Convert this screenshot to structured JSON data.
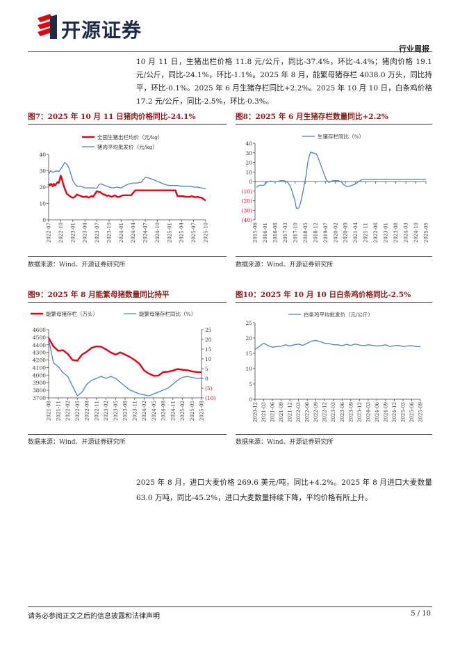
{
  "header": {
    "logo_text": "开源证券",
    "report_type": "行业周报"
  },
  "intro_text": "10 月 11 日，生猪出栏价格 11.8 元/公斤，同比-37.4%，环比-4.4%；猪肉价格 19.1 元/公斤，同比-24.1%，环比-1.1%。2025 年 8 月，能繁母猪存栏 4038.0 万头，同比持平，环比-0.1%。2025 年 6 月生猪存栏同比+2.2%。2025 年 10 月 10 日，白条鸡价格 17.2 元/公斤，同比-2.5%，环比-0.3%。",
  "figures": [
    {
      "title": "图7：2025 年 10 月 11 日猪肉价格同比-24.1%",
      "source": "数据来源：Wind、开源证券研究所"
    },
    {
      "title": "图8：2025 年 6 月生猪存栏数量同比+2.2%",
      "source": "数据来源：Wind、开源证券研究所"
    },
    {
      "title": "图9：2025 年 8 月能繁母猪数量同比持平",
      "source": "数据来源：Wind、开源证券研究所"
    },
    {
      "title": "图10：2025 年 10 月 10 日白条鸡价格同比-2.5%",
      "source": "数据来源：Wind、开源证券研究所"
    }
  ],
  "para2_text": "2025 年 8 月，进口大麦价格 269.6 美元/吨，同比+4.2%。2025 年 8 月进口大麦数量 63.0 万吨，同比-45.2%，进口大麦数量持续下降，平均价格有所上升。",
  "footer": {
    "disclaimer": "请务必参阅正文之后的信息披露和法律声明",
    "page": "5 / 10"
  },
  "colors": {
    "red": "#e60012",
    "blue": "#4f81bd",
    "title": "#8b1b1b"
  },
  "chart_data": [
    {
      "type": "line",
      "ylim": [
        0,
        40
      ],
      "yticks": [
        "0",
        "10",
        "20",
        "30",
        "40"
      ],
      "xticks": [
        "2022-07",
        "2022-10",
        "2023-01",
        "2023-04",
        "2023-07",
        "2023-10",
        "2024-01",
        "2024-04",
        "2024-07",
        "2024-10",
        "2025-01",
        "2025-04",
        "2025-07",
        "2025-10"
      ],
      "legend_position": "top-left",
      "series": [
        {
          "name": "全国生猪出栏均价（元/kg）",
          "color": "#e60012",
          "x": [
            0,
            0.3,
            0.6,
            1,
            1.3,
            1.6,
            1.9,
            2.2,
            2.5,
            2.8,
            3,
            3.3,
            3.6,
            4,
            4.5,
            5,
            5.5,
            6,
            6.5,
            7,
            7.5,
            8,
            8.5,
            9,
            9.3,
            9.6,
            9.9,
            10.3,
            10.7,
            11,
            11.3,
            11.7,
            12,
            12.5,
            12.8,
            13,
            13.3,
            13.6,
            13.9,
            14.2,
            14.5,
            14.8,
            15.2,
            15.6,
            16,
            16.5,
            17,
            17.5,
            18,
            18.5,
            19,
            19.5,
            20,
            20.5,
            21,
            21.5,
            22,
            22.5,
            23,
            23.5,
            24,
            24.5,
            25,
            25.5,
            26,
            26.5,
            27,
            27.5,
            28,
            28.5,
            29,
            29.5,
            30,
            30.5,
            31,
            31.5,
            32,
            32.5,
            33,
            33.5,
            34,
            34.5,
            35,
            35.5,
            36,
            36.5,
            37,
            37.5,
            38,
            38.5,
            39
          ],
          "values": [
            22,
            21,
            22,
            20.5,
            22,
            21,
            22,
            23,
            22.5,
            25,
            27,
            25,
            22,
            19,
            16,
            15,
            14,
            13.5,
            14,
            15.5,
            15,
            14.5,
            14,
            14,
            14.3,
            14,
            13.5,
            14,
            14.5,
            14,
            15,
            16.5,
            17.5,
            17,
            17,
            16.5,
            16,
            15.5,
            15.5,
            15,
            14.5,
            15,
            14.5,
            14,
            14.5,
            15,
            14,
            14,
            14.5,
            15,
            15,
            15,
            15,
            15,
            16.5,
            18,
            18,
            18,
            18,
            18,
            18,
            18,
            18,
            18,
            18,
            18,
            18,
            18,
            18,
            18,
            18,
            18,
            18,
            18,
            18,
            18,
            14.5,
            14.5,
            14.5,
            14.5,
            14,
            14,
            14,
            14.5,
            14,
            13.8,
            14,
            13.7,
            13.5,
            12.5,
            11.8
          ]
        },
        {
          "name": "猪肉平均批发价（元/kg）",
          "color": "#4f81bd",
          "x": [
            0,
            0.5,
            1,
            1.5,
            2,
            2.5,
            3,
            3.5,
            4,
            4.5,
            5,
            5.5,
            6,
            6.5,
            7,
            8,
            9,
            10,
            11,
            12,
            12.5,
            13,
            13.5,
            14,
            15,
            16,
            17,
            18,
            19,
            20,
            21,
            22,
            23,
            24,
            25,
            26,
            27,
            28,
            29,
            30,
            31,
            32,
            33,
            34,
            35,
            36,
            37,
            38,
            39
          ],
          "values": [
            28,
            30,
            29,
            29.5,
            30,
            29.5,
            31,
            33,
            35,
            34,
            32,
            28,
            24,
            22,
            20.5,
            20.5,
            19.5,
            19.5,
            19.5,
            19.3,
            21.5,
            22,
            21.5,
            21,
            20,
            19.5,
            20,
            19.5,
            21,
            22,
            22.5,
            22.5,
            23,
            26,
            25.5,
            24.5,
            23.5,
            22.5,
            21.5,
            21,
            21,
            21,
            20.5,
            20.5,
            20.5,
            20,
            20,
            19.5,
            19
          ]
        }
      ]
    },
    {
      "type": "line",
      "ylim": [
        -40,
        40
      ],
      "yticks": [
        "40",
        "30",
        "20",
        "10",
        "0",
        "(10)",
        "(20)",
        "(30)",
        "(40)"
      ],
      "xticks": [
        "2015-06",
        "2016-01",
        "2016-08",
        "2017-03",
        "2017-10",
        "2018-05",
        "2018-12",
        "2019-07",
        "2020-02",
        "2020-09",
        "2021-04",
        "2021-11",
        "2022-06",
        "2023-01",
        "2023-08",
        "2024-03",
        "2024-10",
        "2025-05"
      ],
      "legend_position": "top-center",
      "series": [
        {
          "name": "生猪存栏同比（%）",
          "color": "#4f81bd",
          "x": [
            1,
            2,
            3,
            4,
            5,
            6,
            7,
            8,
            9,
            10,
            11,
            12,
            13,
            14,
            15,
            16,
            17,
            18,
            19,
            20,
            21,
            22,
            23,
            24,
            25,
            26,
            27,
            28,
            29,
            30,
            31,
            32,
            33,
            34,
            35,
            36,
            37,
            38,
            39,
            40,
            41,
            42,
            43,
            44,
            45,
            46,
            47,
            48,
            49,
            50,
            51,
            52,
            53,
            54,
            55,
            56,
            57,
            58,
            59,
            60,
            61,
            62,
            63,
            64,
            65,
            66,
            67,
            68,
            69,
            70,
            71,
            72,
            73,
            74,
            75,
            76,
            77,
            78,
            79,
            80,
            81,
            82,
            83,
            84,
            85,
            86,
            87,
            88,
            89,
            90,
            91,
            92,
            93,
            94,
            95,
            96,
            97,
            98,
            99,
            100,
            101,
            102,
            103,
            104,
            105,
            106,
            107,
            108,
            109,
            110,
            111,
            112,
            113,
            114,
            115,
            116,
            117,
            118,
            119,
            120
          ],
          "values": [
            -6,
            -5,
            -4,
            -4,
            -4,
            -4,
            -3,
            -1,
            0,
            0,
            0.5,
            0,
            0,
            -0.5,
            0,
            0,
            0.5,
            1,
            1,
            1,
            0.5,
            0,
            -1,
            -3,
            -6,
            -10,
            -15,
            -20,
            -28,
            -28,
            -27,
            -22,
            -15,
            -8,
            0,
            8,
            20,
            26,
            31,
            30,
            30,
            29,
            29,
            26,
            22,
            18,
            14,
            10,
            6,
            2,
            0,
            -1,
            0,
            0.5,
            1,
            1,
            1,
            1,
            0.5,
            0,
            -1,
            -3,
            -4,
            -5,
            -5,
            -5,
            -4.5,
            -4,
            -3.5,
            -3,
            -2,
            -1,
            0,
            1,
            2,
            2.2,
            2.2,
            2.2,
            2.2,
            2.2,
            2.2,
            2.2,
            2.2,
            2.2,
            2.2,
            2.2,
            2.2,
            2.2,
            2.2,
            2.2,
            2.2,
            2.2,
            2.2,
            2.2,
            2.2,
            2.2,
            2.2,
            2.2,
            2.2,
            2.2,
            2.2,
            2.2,
            2.2,
            2.2,
            2.2,
            2.2,
            2.2,
            2.2,
            2.2,
            2.2,
            2.2,
            2.2,
            2.2,
            2.2,
            2.2,
            2.2,
            2.2,
            2.2,
            2.2,
            2.2
          ]
        }
      ]
    },
    {
      "type": "line",
      "ylim_left": [
        3700,
        4600
      ],
      "ylim_right": [
        -10,
        25
      ],
      "yticks_left": [
        "3700",
        "3800",
        "3900",
        "4000",
        "4100",
        "4200",
        "4300",
        "4400",
        "4500",
        "4600"
      ],
      "yticks_right": [
        "(10)",
        "(5)",
        "0",
        "5",
        "10",
        "15",
        "20",
        "25"
      ],
      "xticks": [
        "2021-08",
        "2021-11",
        "2022-02",
        "2022-05",
        "2022-08",
        "2022-11",
        "2023-02",
        "2023-05",
        "2023-08",
        "2023-11",
        "2024-02",
        "2024-05",
        "2024-08",
        "2024-11",
        "2025-02",
        "2025-05",
        "2025-08"
      ],
      "legend_position": "top",
      "series": [
        {
          "name": "能繁母猪存栏（万头）",
          "color": "#e60012",
          "axis": "left",
          "x": [
            0,
            0.5,
            1,
            1.5,
            2,
            2.5,
            3,
            3.5,
            4,
            4.5,
            5,
            5.5,
            6,
            6.5,
            7,
            7.5,
            8,
            8.5,
            9,
            9.5,
            10,
            10.5,
            11,
            11.5,
            12,
            12.5,
            13,
            13.5,
            14,
            14.5,
            15,
            15.5,
            16
          ],
          "values": [
            4490,
            4380,
            4320,
            4330,
            4280,
            4200,
            4190,
            4270,
            4310,
            4360,
            4380,
            4375,
            4340,
            4300,
            4270,
            4300,
            4270,
            4240,
            4200,
            4150,
            4060,
            4020,
            3990,
            3995,
            4040,
            4045,
            4060,
            4080,
            4070,
            4065,
            4050,
            4040,
            4038
          ]
        },
        {
          "name": "能繁母猪存栏同比（%）",
          "color": "#4f81bd",
          "axis": "right",
          "x": [
            0,
            0.5,
            1,
            1.5,
            2,
            2.5,
            3,
            3.5,
            4,
            4.5,
            5,
            5.5,
            6,
            6.5,
            7,
            7.5,
            8,
            8.5,
            9,
            9.5,
            10,
            10.5,
            11,
            11.5,
            12,
            12.5,
            13,
            13.5,
            14,
            14.5,
            15,
            15.5,
            16
          ],
          "values": [
            20,
            8,
            6,
            3,
            1,
            -4,
            -9,
            -7,
            -3,
            -1,
            0,
            1,
            0,
            1,
            0,
            -2,
            -4,
            -6,
            -7,
            -8,
            -8.5,
            -9,
            -8,
            -7,
            -6,
            -5,
            -3,
            -1,
            0.5,
            1,
            0.5,
            0,
            0
          ]
        }
      ]
    },
    {
      "type": "line",
      "ylim": [
        0,
        25
      ],
      "yticks": [
        "0",
        "5",
        "10",
        "15",
        "20",
        "25"
      ],
      "xticks": [
        "2020-12",
        "2021-03",
        "2021-06",
        "2021-09",
        "2021-12",
        "2022-03",
        "2022-06",
        "2022-09",
        "2022-12",
        "2023-03",
        "2023-06",
        "2023-09",
        "2023-12",
        "2024-03",
        "2024-06",
        "2024-09",
        "2024-12",
        "2025-03",
        "2025-06",
        "2025-09"
      ],
      "legend_position": "top-center",
      "series": [
        {
          "name": "白条鸡平均批发价（元/公斤）",
          "color": "#4f81bd",
          "x": [
            0,
            0.3,
            0.6,
            1,
            1.5,
            2,
            2.5,
            3,
            3.5,
            4,
            4.5,
            5,
            5.5,
            6,
            6.5,
            7,
            7.5,
            8,
            8.5,
            9,
            9.5,
            10,
            10.5,
            11,
            11.5,
            12,
            12.5,
            13,
            13.5,
            14,
            14.5,
            15,
            15.5,
            16,
            16.5,
            17,
            17.5,
            18,
            18.5,
            19
          ],
          "values": [
            16.3,
            16.8,
            17.5,
            18.3,
            17.5,
            17,
            17.2,
            17.3,
            17.8,
            17.4,
            17.8,
            18,
            17.6,
            18.3,
            19,
            19.2,
            18.8,
            18.3,
            18.2,
            17.8,
            17.8,
            17.5,
            17.9,
            17.6,
            18,
            17.7,
            17.5,
            17.8,
            17.6,
            17.4,
            17.5,
            17.8,
            17.2,
            17.5,
            17.6,
            17.2,
            17.4,
            17.5,
            17.2,
            17.2
          ]
        }
      ]
    }
  ]
}
